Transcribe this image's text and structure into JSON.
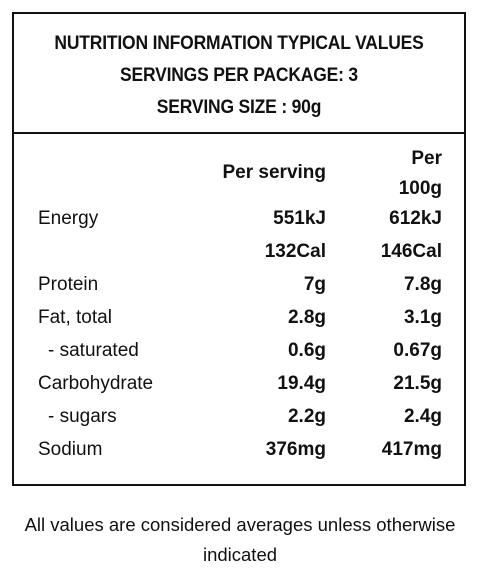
{
  "header": {
    "line1": "NUTRITION INFORMATION TYPICAL VALUES",
    "line2": "SERVINGS PER PACKAGE: 3",
    "line3": "SERVING SIZE : 90g"
  },
  "columns": {
    "per_serving": "Per serving",
    "per_100g_line1": "Per",
    "per_100g_line2": "100g"
  },
  "rows": [
    {
      "label": "Energy",
      "per_serving": "551kJ",
      "per_100g": "612kJ"
    },
    {
      "label": "",
      "per_serving": "132Cal",
      "per_100g": "146Cal"
    },
    {
      "label": "Protein",
      "per_serving": "7g",
      "per_100g": "7.8g"
    },
    {
      "label": "Fat, total",
      "per_serving": "2.8g",
      "per_100g": "3.1g"
    },
    {
      "label": "- saturated",
      "per_serving": "0.6g",
      "per_100g": "0.67g"
    },
    {
      "label": "Carbohydrate",
      "per_serving": "19.4g",
      "per_100g": "21.5g"
    },
    {
      "label": "- sugars",
      "per_serving": "2.2g",
      "per_100g": "2.4g"
    },
    {
      "label": "Sodium",
      "per_serving": "376mg",
      "per_100g": "417mg"
    }
  ],
  "footnote": "All values are considered averages unless otherwise indicated"
}
